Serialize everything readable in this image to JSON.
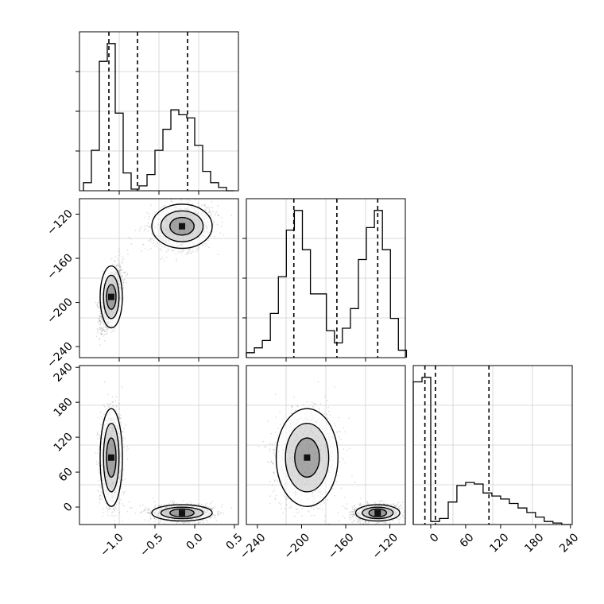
{
  "chart_data": {
    "type": "corner",
    "grid": true,
    "ticks": {
      "x1": [
        "−1.0",
        "−0.5",
        "0.0",
        "0.5"
      ],
      "x2": [
        "−240",
        "−200",
        "−160",
        "−120"
      ],
      "x3": [
        "0",
        "60",
        "120",
        "180",
        "240"
      ],
      "y2": [
        "−120",
        "−160",
        "−200",
        "−240"
      ],
      "y3": [
        "240",
        "180",
        "120",
        "60",
        "0"
      ]
    },
    "ranges": {
      "p1": [
        -1.45,
        0.55
      ],
      "p2": [
        -250,
        -106
      ],
      "p3": [
        -30,
        243
      ]
    },
    "quantiles": {
      "p1": [
        -1.08,
        -0.72,
        -0.09
      ],
      "p2": [
        -207,
        -168,
        -131
      ],
      "p3": [
        -10,
        8,
        100
      ]
    },
    "hist1": {
      "range": [
        -1.4,
        0.5
      ],
      "counts": [
        0.05,
        0.25,
        0.8,
        0.91,
        0.48,
        0.11,
        0.01,
        0.03,
        0.1,
        0.25,
        0.38,
        0.5,
        0.47,
        0.45,
        0.28,
        0.12,
        0.05,
        0.02,
        0.0
      ]
    },
    "hist2": {
      "range": [
        -250,
        -105
      ],
      "counts": [
        0.02,
        0.04,
        0.07,
        0.18,
        0.33,
        0.52,
        0.6,
        0.44,
        0.26,
        0.26,
        0.11,
        0.06,
        0.12,
        0.2,
        0.4,
        0.53,
        0.6,
        0.44,
        0.16,
        0.03
      ]
    },
    "hist3": {
      "range": [
        -30,
        240
      ],
      "counts": [
        0.95,
        0.98,
        0.02,
        0.04,
        0.15,
        0.26,
        0.28,
        0.27,
        0.21,
        0.19,
        0.17,
        0.14,
        0.11,
        0.08,
        0.05,
        0.02,
        0.01,
        0.0
      ]
    },
    "clusters": [
      {
        "p1": -1.05,
        "p2": -195,
        "p3": 85,
        "s1": 0.07,
        "s2": 14,
        "s3": 42,
        "rho12": 0.55,
        "n": 1400
      },
      {
        "p1": -0.16,
        "p2": -131,
        "p3": -10,
        "s1": 0.19,
        "s2": 10,
        "s3": 7,
        "rho12": 0.2,
        "n": 1400
      }
    ]
  }
}
